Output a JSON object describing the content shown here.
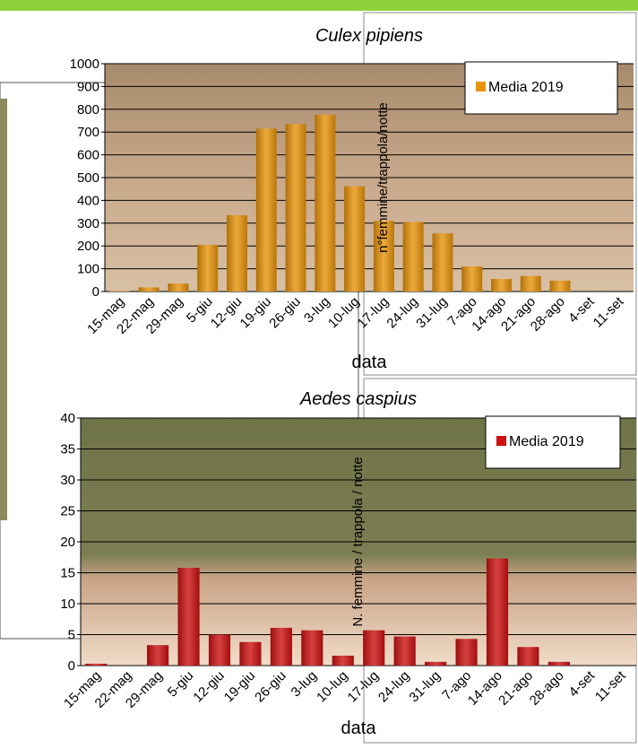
{
  "chart_data": [
    {
      "type": "bar",
      "title": "Culex pipiens",
      "x_label": "data",
      "y_label": "n°femmine/trappola/notte",
      "categories": [
        "15-mag",
        "22-mag",
        "29-mag",
        "5-giu",
        "12-giu",
        "19-giu",
        "26-giu",
        "3-lug",
        "10-lug",
        "17-lug",
        "24-lug",
        "31-lug",
        "7-ago",
        "14-ago",
        "21-ago",
        "28-ago",
        "4-set",
        "11-set"
      ],
      "series": [
        {
          "name": "Media 2019",
          "color": "#e8940a",
          "values": [
            2,
            18,
            35,
            205,
            335,
            715,
            735,
            775,
            462,
            310,
            305,
            255,
            110,
            55,
            68,
            48,
            0,
            0
          ]
        }
      ],
      "ylim": [
        0,
        1000
      ],
      "yticks": [
        0,
        100,
        200,
        300,
        400,
        500,
        600,
        700,
        800,
        900,
        1000
      ],
      "grid": true,
      "legend": "upper right"
    },
    {
      "type": "bar",
      "title": "Aedes caspius",
      "x_label": "data",
      "y_label": "N. femmine / trappola / notte",
      "categories": [
        "15-mag",
        "22-mag",
        "29-mag",
        "5-giu",
        "12-giu",
        "19-giu",
        "26-giu",
        "3-lug",
        "10-lug",
        "17-lug",
        "24-lug",
        "31-lug",
        "7-ago",
        "14-ago",
        "21-ago",
        "28-ago",
        "4-set",
        "11-set"
      ],
      "series": [
        {
          "name": "Media 2019",
          "color": "#cc1111",
          "values": [
            0.3,
            0,
            3.3,
            15.8,
            5,
            3.8,
            6.1,
            5.7,
            1.6,
            5.7,
            4.7,
            0.6,
            4.3,
            17.3,
            3,
            0.6,
            0,
            0
          ]
        }
      ],
      "ylim": [
        0,
        40
      ],
      "yticks": [
        0,
        5,
        10,
        15,
        20,
        25,
        30,
        35,
        40
      ],
      "grid": true,
      "legend": "upper right"
    }
  ]
}
